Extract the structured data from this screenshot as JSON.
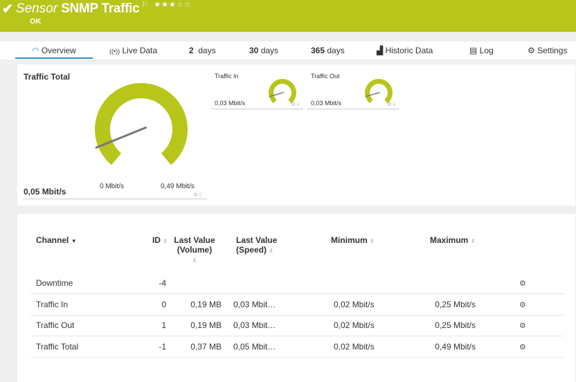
{
  "header": {
    "check_icon": "checkmark",
    "prefix": "Sensor",
    "title": "SNMP Traffic",
    "flag_icon": "flag",
    "rating": 3,
    "rating_max": 5,
    "status": "OK",
    "color": "#b8c51b"
  },
  "tabs": [
    {
      "label": "Overview",
      "icon": "gauge",
      "active": true
    },
    {
      "label": "Live Data",
      "icon": "broadcast"
    },
    {
      "num": "2",
      "label": "days"
    },
    {
      "num": "30",
      "label": "days"
    },
    {
      "num": "365",
      "label": "days"
    },
    {
      "label": "Historic Data",
      "icon": "area-chart"
    },
    {
      "label": "Log",
      "icon": "list"
    },
    {
      "label": "Settings",
      "icon": "gear"
    }
  ],
  "gauges": {
    "total": {
      "title": "Traffic Total",
      "value": "0,05 Mbit/s",
      "min": "0 Mbit/s",
      "max": "0,49 Mbit/s",
      "fraction": 0.1
    },
    "in": {
      "title": "Traffic In",
      "value": "0,03 Mbit/s",
      "fraction": 0.12
    },
    "out": {
      "title": "Traffic Out",
      "value": "0,03 Mbit/s",
      "fraction": 0.12
    }
  },
  "table": {
    "headers": {
      "channel": "Channel",
      "id": "ID",
      "vol1": "Last Value",
      "vol2": "(Volume)",
      "spd1": "Last Value",
      "spd2": "(Speed)",
      "min": "Minimum",
      "max": "Maximum"
    },
    "rows": [
      {
        "channel": "Downtime",
        "id": "-4",
        "volume": "",
        "speed": "",
        "min": "",
        "max": ""
      },
      {
        "channel": "Traffic In",
        "id": "0",
        "volume": "0,19 MB",
        "speed": "0,03 Mbit…",
        "min": "0,02 Mbit/s",
        "max": "0,25 Mbit/s"
      },
      {
        "channel": "Traffic Out",
        "id": "1",
        "volume": "0,19 MB",
        "speed": "0,03 Mbit…",
        "min": "0,02 Mbit/s",
        "max": "0,25 Mbit/s"
      },
      {
        "channel": "Traffic Total",
        "id": "-1",
        "volume": "0,37 MB",
        "speed": "0,05 Mbit…",
        "min": "0,02 Mbit/s",
        "max": "0,49 Mbit/s"
      }
    ]
  }
}
